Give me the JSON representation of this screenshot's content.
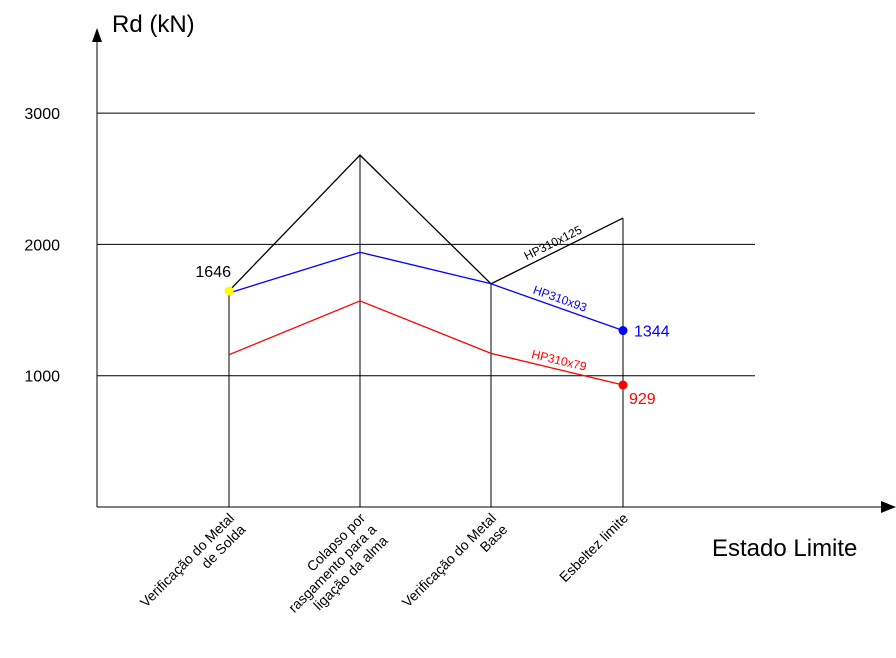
{
  "chart_data": {
    "type": "line",
    "ylabel": "Rd (kN)",
    "xlabel": "Estado Limite",
    "ylim": [
      0,
      3000
    ],
    "yticks": [
      1000,
      2000,
      3000
    ],
    "grid": true,
    "categories": [
      [
        "Verificação do Metal",
        "de Solda"
      ],
      [
        "Colapso por",
        "rasgamento para a",
        "ligação da alma"
      ],
      [
        "Verificação do Metal",
        "Base"
      ],
      [
        "Esbeltez limite"
      ]
    ],
    "series": [
      {
        "name": "HP310x125",
        "color": "#000000",
        "values": [
          1646,
          2680,
          1700,
          2200
        ]
      },
      {
        "name": "HP310x93",
        "color": "#0000ff",
        "values": [
          1630,
          1940,
          1700,
          1344
        ]
      },
      {
        "name": "HP310x79",
        "color": "#ff0000",
        "values": [
          1160,
          1570,
          1170,
          929
        ]
      }
    ],
    "annotations": [
      {
        "text": "1646",
        "category": 0,
        "value": 1646,
        "color": "#000000",
        "marker": "#ffff00"
      },
      {
        "text": "1344",
        "category": 3,
        "value": 1344,
        "color": "#0000ff",
        "marker": "#0000ff"
      },
      {
        "text": "929",
        "category": 3,
        "value": 929,
        "color": "#ff0000",
        "marker": "#ff0000"
      }
    ]
  }
}
